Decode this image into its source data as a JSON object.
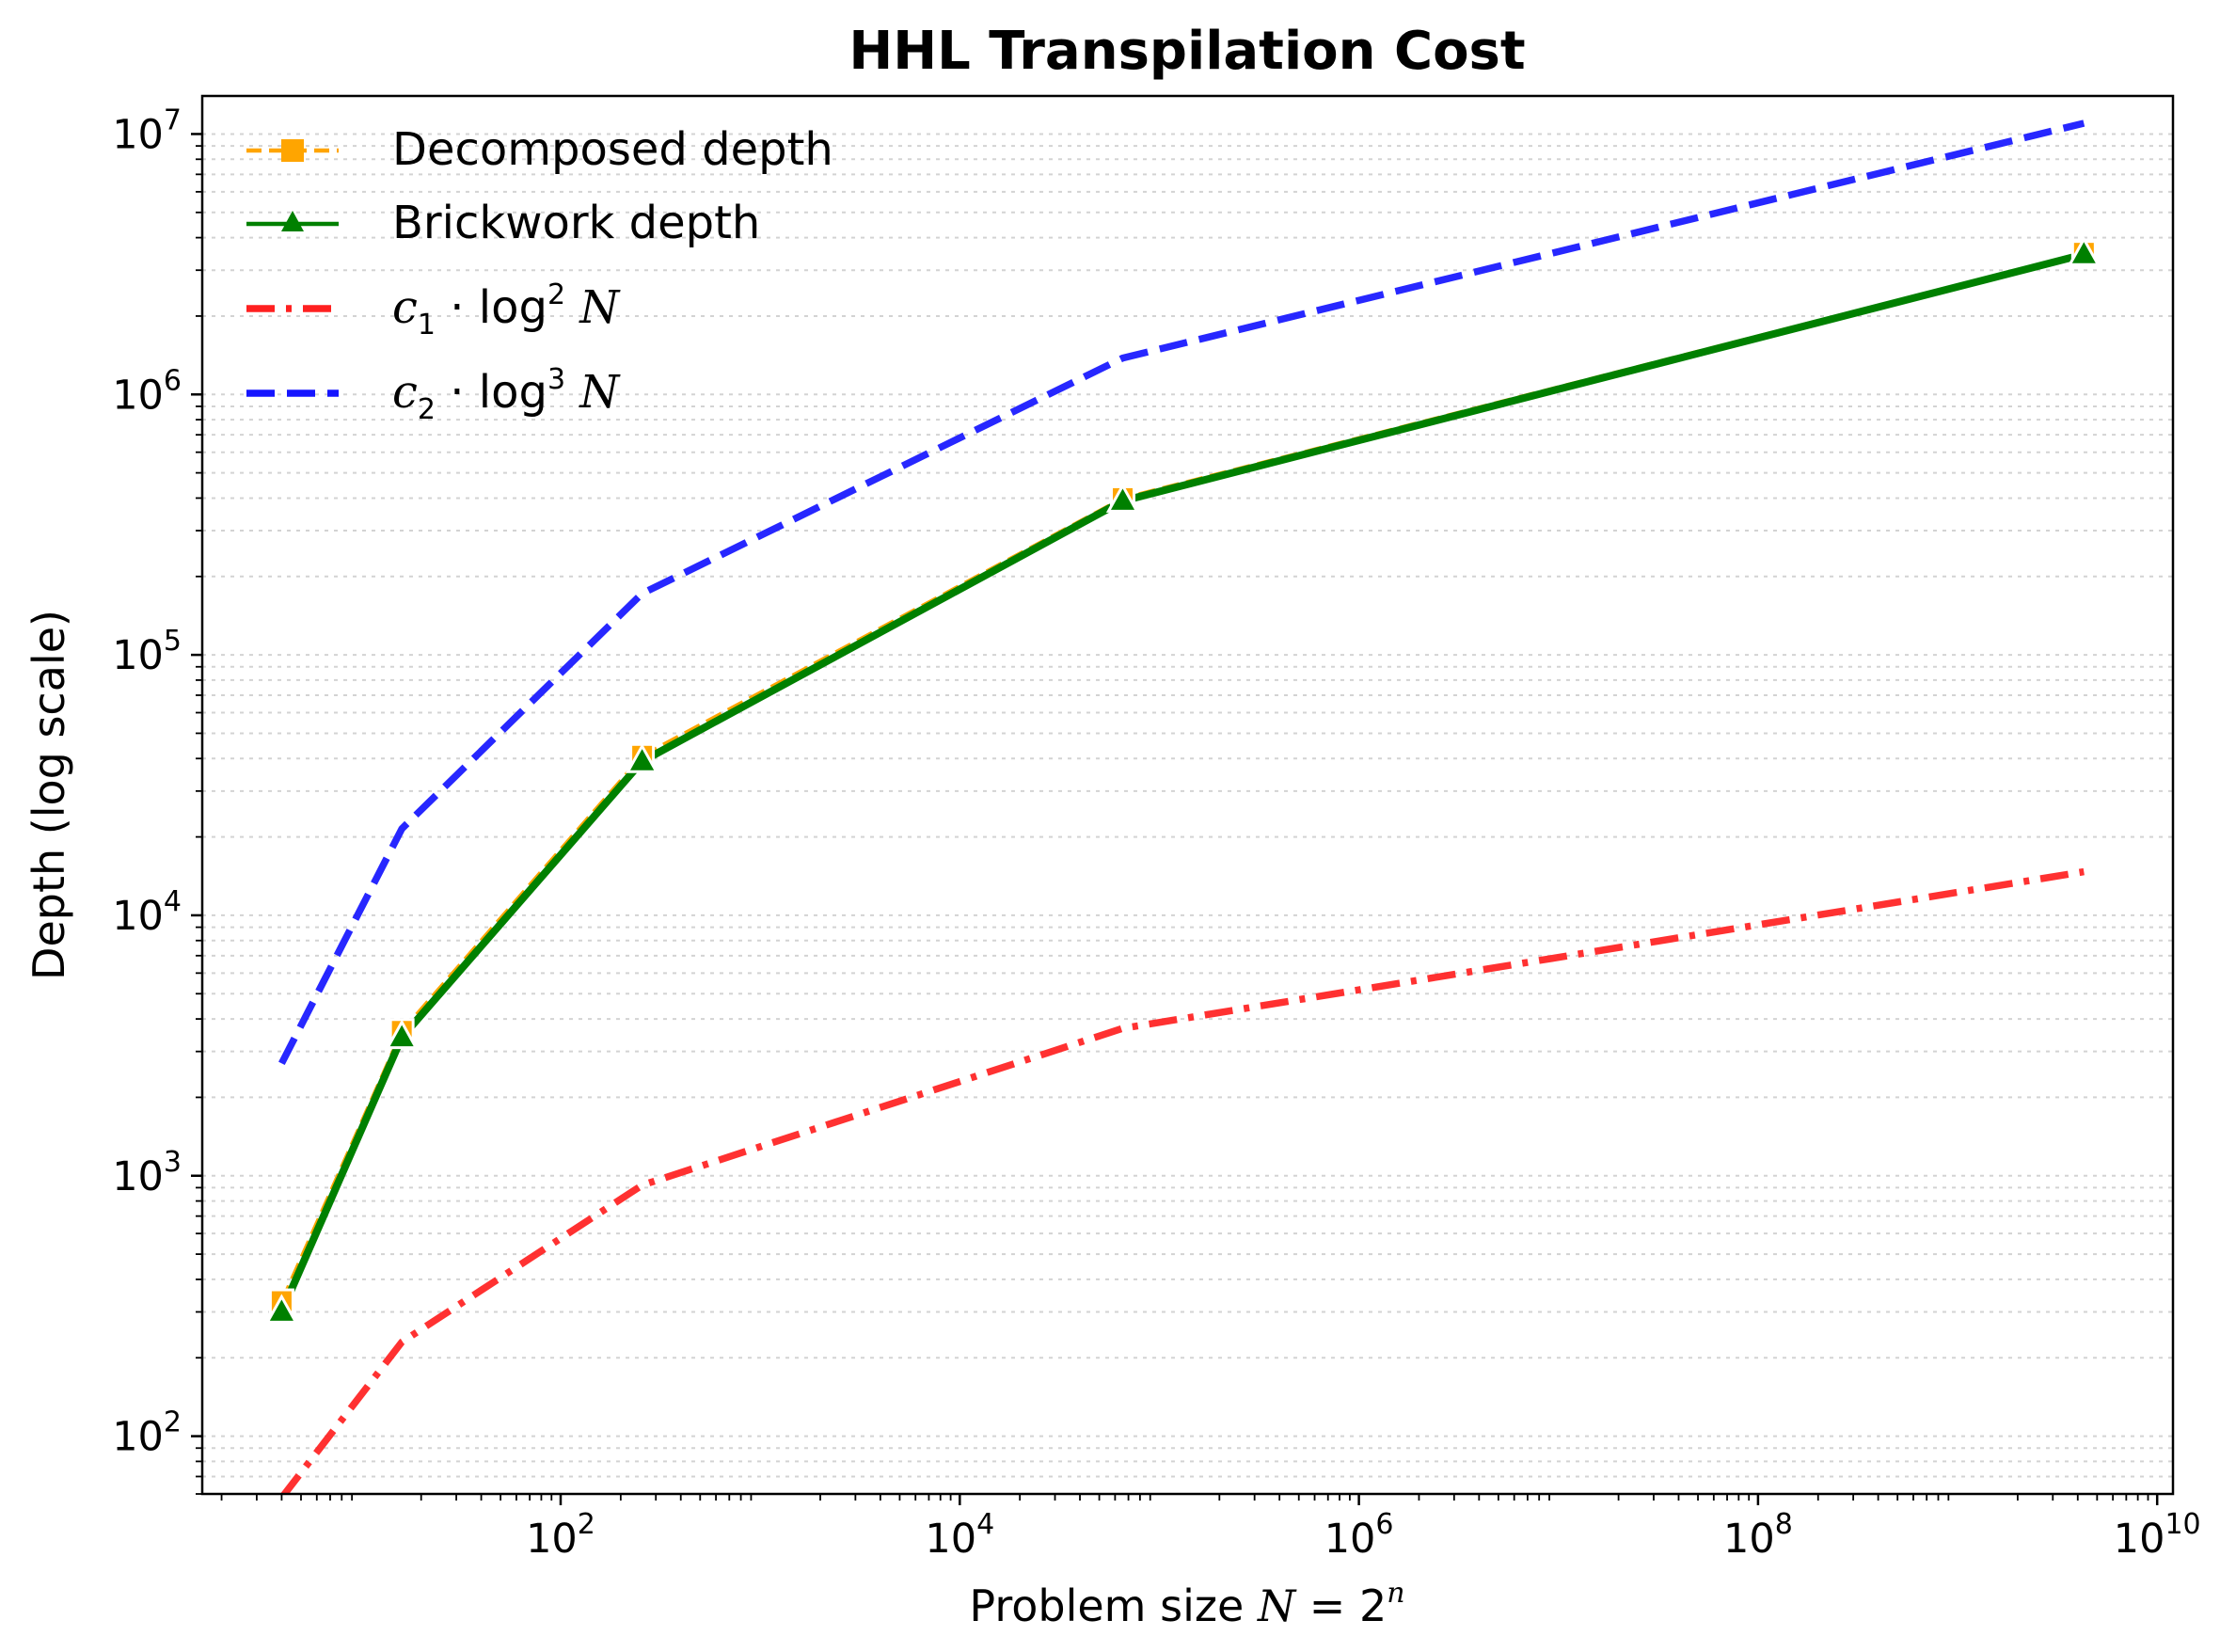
{
  "chart_data": {
    "type": "line",
    "title": "HHL Transpilation Cost",
    "xlabel": "Problem size N = 2^n",
    "ylabel": "Depth (log scale)",
    "xscale": "log",
    "yscale": "log",
    "xlim": [
      1.6,
      12000000000
    ],
    "ylim": [
      60,
      14000000
    ],
    "x_ticks": [
      100,
      10000,
      1000000,
      100000000,
      10000000000
    ],
    "x_tick_labels": [
      [
        "10",
        "2"
      ],
      [
        "10",
        "4"
      ],
      [
        "10",
        "6"
      ],
      [
        "10",
        "8"
      ],
      [
        "10",
        "10"
      ]
    ],
    "y_ticks": [
      100,
      1000,
      10000,
      100000,
      1000000,
      10000000
    ],
    "y_tick_labels": [
      [
        "10",
        "2"
      ],
      [
        "10",
        "3"
      ],
      [
        "10",
        "4"
      ],
      [
        "10",
        "5"
      ],
      [
        "10",
        "6"
      ],
      [
        "10",
        "7"
      ]
    ],
    "grid": "minor y gridlines (dotted)",
    "legend_position": "top-left",
    "x": [
      4,
      16,
      256,
      65536,
      4294967296
    ],
    "series": [
      {
        "name": "Decomposed depth",
        "values": [
          330,
          3600,
          41000,
          400000,
          3500000
        ],
        "color": "#FFA500",
        "style": "dashed",
        "marker": "square"
      },
      {
        "name": "Brickwork depth",
        "values": [
          300,
          3400,
          39000,
          390000,
          3450000
        ],
        "color": "#008000",
        "style": "solid",
        "marker": "triangle"
      },
      {
        "name": "c1 · log2 N",
        "values": [
          58,
          230,
          920,
          3680,
          14700
        ],
        "color": "#FF2020",
        "style": "dashdot",
        "marker": "none"
      },
      {
        "name": "c2 · log3 N",
        "values": [
          2700,
          21500,
          172000,
          1380000,
          11000000
        ],
        "color": "#1515FF",
        "style": "dashed",
        "marker": "none"
      }
    ],
    "legend": [
      {
        "key": "series.0",
        "label": "Decomposed depth"
      },
      {
        "key": "series.1",
        "label": "Brickwork depth"
      },
      {
        "key": "series.2",
        "label_parts": [
          "c",
          "1",
          " · log",
          "2",
          " N"
        ]
      },
      {
        "key": "series.3",
        "label_parts": [
          "c",
          "2",
          " · log",
          "3",
          " N"
        ]
      }
    ]
  }
}
